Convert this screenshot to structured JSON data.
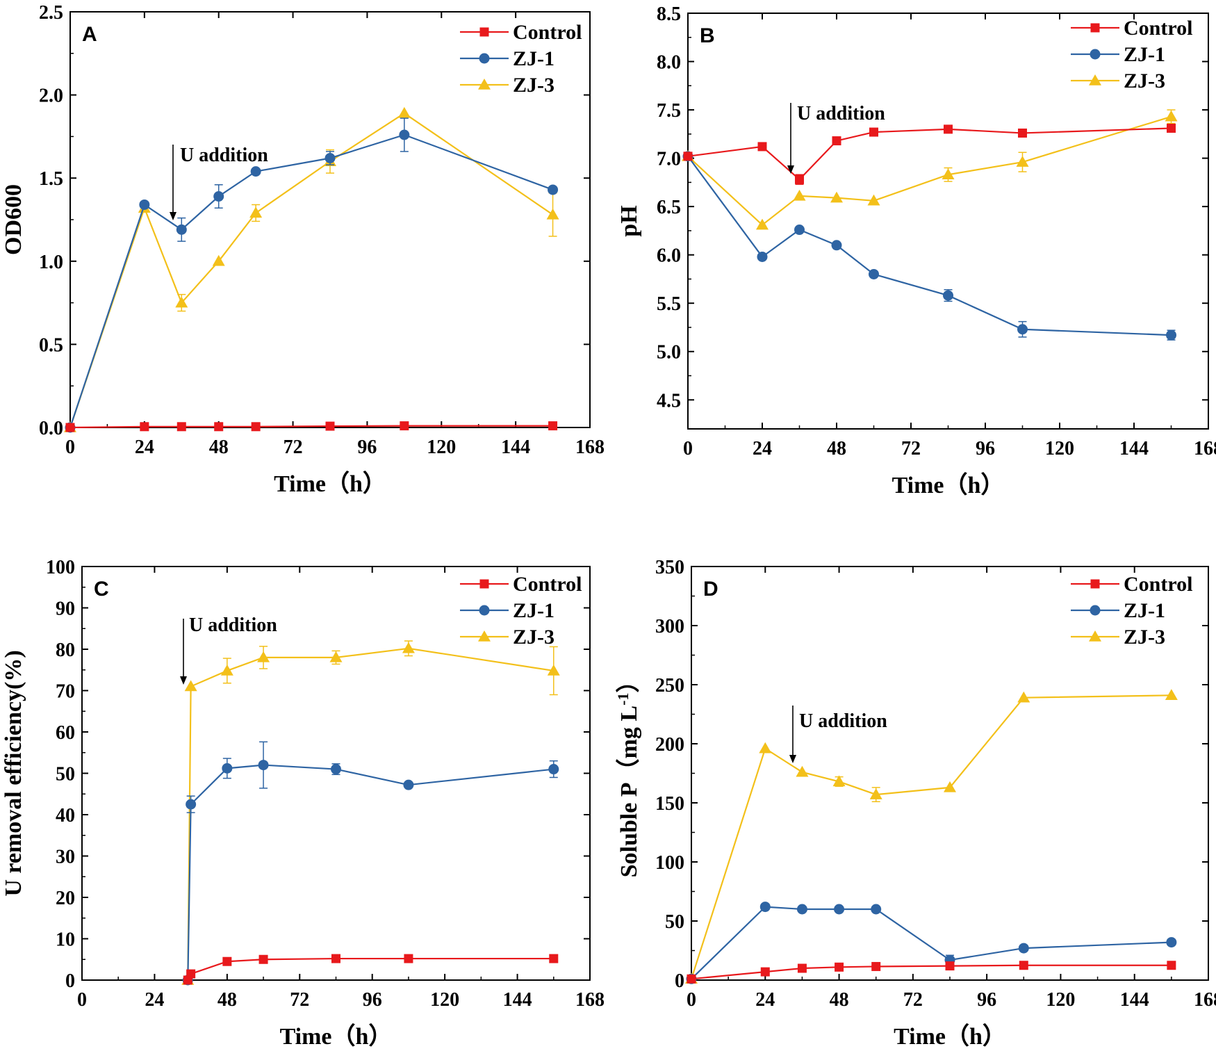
{
  "legend_labels": [
    "Control",
    "ZJ-1",
    "ZJ-3"
  ],
  "series_colors": {
    "Control": "#e8191c",
    "ZJ-1": "#2e64a3",
    "ZJ-3": "#f3c01a"
  },
  "chart_data": [
    {
      "type": "line",
      "panel": "A",
      "title": "",
      "xlabel": "Time（h）",
      "ylabel": "OD600",
      "xlim": [
        0,
        168
      ],
      "ylim": [
        0,
        2.5
      ],
      "xticks": [
        0,
        24,
        48,
        72,
        96,
        120,
        144,
        168
      ],
      "yticks": [
        "0.0",
        "0.5",
        "1.0",
        "1.5",
        "2.0",
        "2.5"
      ],
      "annotation": {
        "text": "U addition",
        "x": 34
      },
      "series": [
        {
          "name": "Control",
          "x": [
            0,
            24,
            36,
            48,
            60,
            84,
            108,
            156
          ],
          "y": [
            0.0,
            0.005,
            0.005,
            0.005,
            0.005,
            0.008,
            0.01,
            0.01
          ],
          "err": [
            0,
            0,
            0,
            0,
            0,
            0,
            0,
            0
          ]
        },
        {
          "name": "ZJ-1",
          "x": [
            0,
            24,
            36,
            48,
            60,
            84,
            108,
            156
          ],
          "y": [
            0.0,
            1.34,
            1.19,
            1.39,
            1.54,
            1.62,
            1.76,
            1.43
          ],
          "err": [
            0,
            0,
            0.07,
            0.07,
            0,
            0.04,
            0.1,
            0
          ]
        },
        {
          "name": "ZJ-3",
          "x": [
            0,
            24,
            36,
            48,
            60,
            84,
            108,
            156
          ],
          "y": [
            0.0,
            1.32,
            0.75,
            1.0,
            1.29,
            1.6,
            1.89,
            1.28
          ],
          "err": [
            0,
            0,
            0.05,
            0,
            0.05,
            0.07,
            0,
            0.13
          ]
        }
      ]
    },
    {
      "type": "line",
      "panel": "B",
      "title": "",
      "xlabel": "Time（h）",
      "ylabel": "pH",
      "xlim": [
        0,
        168
      ],
      "ylim": [
        4.2,
        8.5
      ],
      "xticks": [
        0,
        24,
        48,
        72,
        96,
        120,
        144,
        168
      ],
      "yticks": [
        "4.5",
        "5.0",
        "5.5",
        "6.0",
        "6.5",
        "7.0",
        "7.5",
        "8.0",
        "8.5"
      ],
      "annotation": {
        "text": "U addition",
        "x": 34
      },
      "series": [
        {
          "name": "Control",
          "x": [
            0,
            24,
            36,
            48,
            60,
            84,
            108,
            156
          ],
          "y": [
            7.02,
            7.12,
            6.78,
            7.18,
            7.27,
            7.3,
            7.26,
            7.31
          ],
          "err": [
            0,
            0,
            0.05,
            0,
            0,
            0,
            0,
            0
          ]
        },
        {
          "name": "ZJ-1",
          "x": [
            0,
            24,
            36,
            48,
            60,
            84,
            108,
            156
          ],
          "y": [
            7.02,
            5.98,
            6.26,
            6.1,
            5.8,
            5.58,
            5.23,
            5.17
          ],
          "err": [
            0,
            0,
            0,
            0,
            0,
            0.06,
            0.08,
            0.05
          ]
        },
        {
          "name": "ZJ-3",
          "x": [
            0,
            24,
            36,
            48,
            60,
            84,
            108,
            156
          ],
          "y": [
            7.02,
            6.31,
            6.61,
            6.59,
            6.56,
            6.83,
            6.96,
            7.43
          ],
          "err": [
            0,
            0,
            0,
            0,
            0,
            0.07,
            0.1,
            0.07
          ]
        }
      ]
    },
    {
      "type": "line",
      "panel": "C",
      "title": "",
      "xlabel": "Time（h）",
      "ylabel": "U removal efficiency(%)",
      "xlim": [
        0,
        168
      ],
      "ylim": [
        0,
        100
      ],
      "xticks": [
        0,
        24,
        48,
        72,
        96,
        120,
        144,
        168
      ],
      "yticks": [
        "0",
        "10",
        "20",
        "30",
        "40",
        "50",
        "60",
        "70",
        "80",
        "90",
        "100"
      ],
      "annotation": {
        "text": "U addition",
        "x": 34
      },
      "series": [
        {
          "name": "Control",
          "x": [
            35,
            36,
            48,
            60,
            84,
            108,
            156
          ],
          "y": [
            0,
            1.5,
            4.5,
            5.0,
            5.2,
            5.2,
            5.2
          ],
          "err": [
            0,
            0,
            0,
            0,
            0,
            0,
            0
          ]
        },
        {
          "name": "ZJ-1",
          "x": [
            35,
            36,
            48,
            60,
            84,
            108,
            156
          ],
          "y": [
            0,
            42.5,
            51.2,
            52.0,
            51.0,
            47.2,
            51.0
          ],
          "err": [
            0,
            2.0,
            2.4,
            5.6,
            1.3,
            0,
            2.0
          ]
        },
        {
          "name": "ZJ-3",
          "x": [
            35,
            36,
            48,
            60,
            84,
            108,
            156
          ],
          "y": [
            0,
            71.0,
            74.8,
            78.0,
            78.0,
            80.2,
            74.8
          ],
          "err": [
            0,
            0,
            3.0,
            2.7,
            1.6,
            1.8,
            5.8
          ]
        }
      ]
    },
    {
      "type": "line",
      "panel": "D",
      "title": "",
      "xlabel": "Time（h）",
      "ylabel": "Soluble P（mg L",
      "ylabel_sup": "-1",
      "ylabel_end": "）",
      "xlim": [
        0,
        168
      ],
      "ylim": [
        0,
        350
      ],
      "xticks": [
        0,
        24,
        48,
        72,
        96,
        120,
        144,
        168
      ],
      "yticks": [
        "0",
        "50",
        "100",
        "150",
        "200",
        "250",
        "300",
        "350"
      ],
      "annotation": {
        "text": "U addition",
        "x": 34
      },
      "series": [
        {
          "name": "Control",
          "x": [
            0,
            24,
            36,
            48,
            60,
            84,
            108,
            156
          ],
          "y": [
            1,
            7,
            10,
            11,
            11.5,
            12,
            12.5,
            12.5
          ],
          "err": [
            0,
            0,
            0,
            0,
            0,
            0,
            0,
            0
          ]
        },
        {
          "name": "ZJ-1",
          "x": [
            0,
            24,
            36,
            48,
            60,
            84,
            108,
            156
          ],
          "y": [
            1,
            62,
            60,
            60,
            60,
            17,
            27,
            32
          ],
          "err": [
            0,
            0,
            0,
            0,
            0,
            4,
            0,
            0
          ]
        },
        {
          "name": "ZJ-3",
          "x": [
            0,
            24,
            36,
            48,
            60,
            84,
            108,
            156
          ],
          "y": [
            1,
            196,
            176,
            168,
            157,
            163,
            239,
            241
          ],
          "err": [
            0,
            0,
            0,
            4,
            6,
            0,
            0,
            0
          ]
        }
      ]
    }
  ]
}
